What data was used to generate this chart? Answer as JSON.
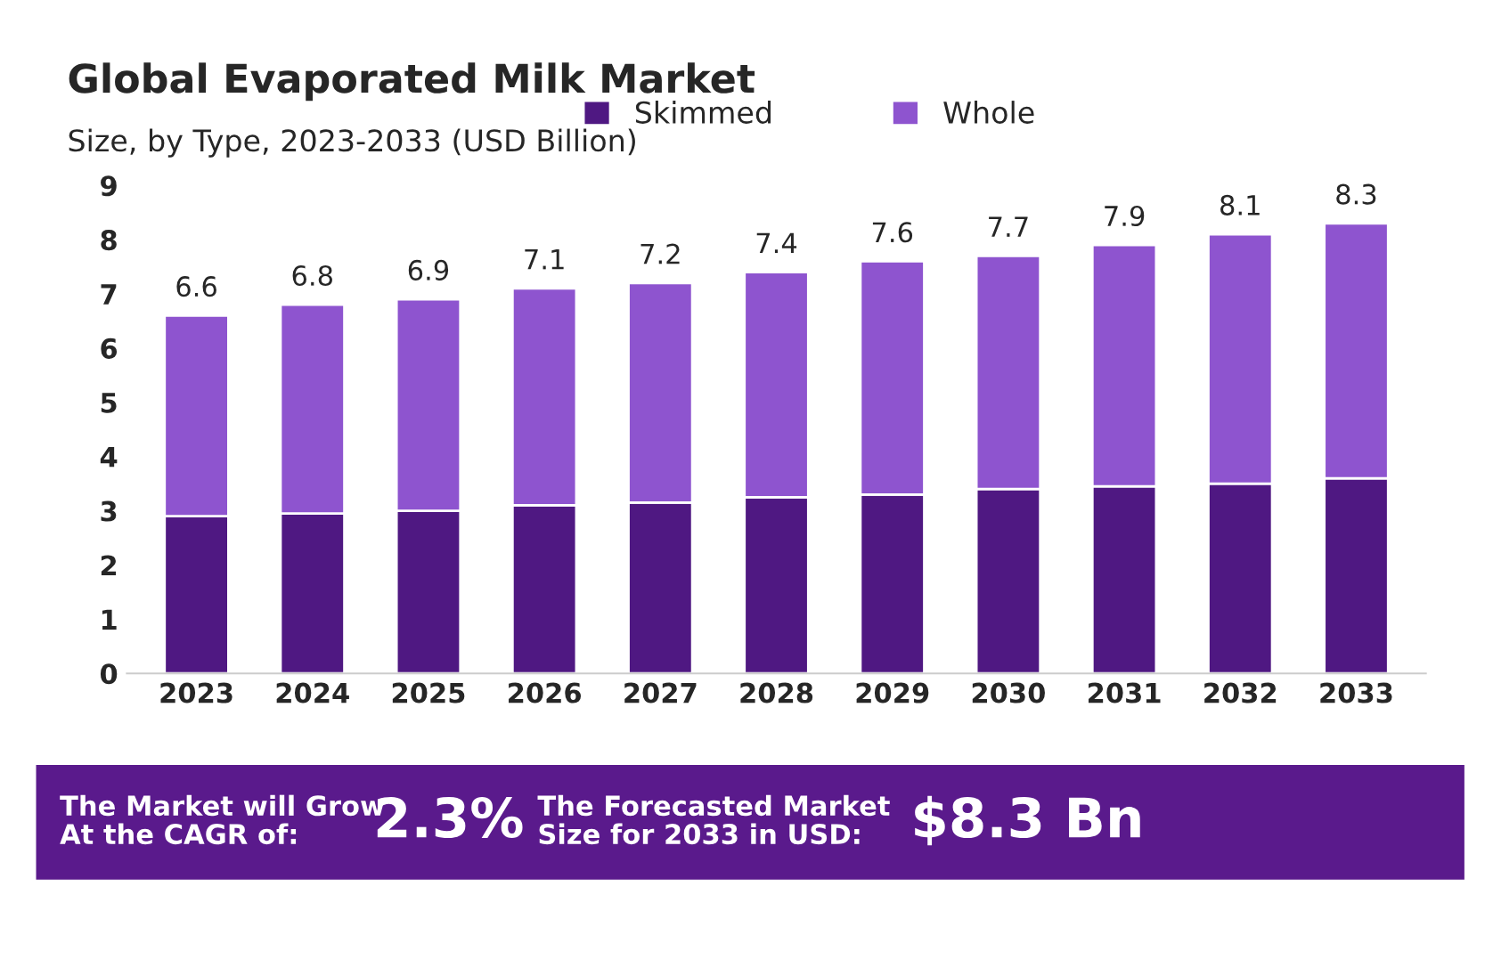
{
  "chart_data": {
    "type": "bar",
    "title": "Global Evaporated Milk Market",
    "subtitle": "Size, by Type, 2023-2033 (USD Billion)",
    "categories": [
      "2023",
      "2024",
      "2025",
      "2026",
      "2027",
      "2028",
      "2029",
      "2030",
      "2031",
      "2032",
      "2033"
    ],
    "stacked": true,
    "series": [
      {
        "name": "Skimmed",
        "color": "#4f1882",
        "values": [
          2.9,
          2.95,
          3.0,
          3.1,
          3.15,
          3.25,
          3.3,
          3.4,
          3.45,
          3.5,
          3.6
        ]
      },
      {
        "name": "Whole",
        "color": "#8e54cf",
        "values": [
          3.7,
          3.85,
          3.9,
          4.0,
          4.05,
          4.15,
          4.3,
          4.3,
          4.45,
          4.6,
          4.7
        ]
      }
    ],
    "totals": [
      "6.6",
      "6.8",
      "6.9",
      "7.1",
      "7.2",
      "7.4",
      "7.6",
      "7.7",
      "7.9",
      "8.1",
      "8.3"
    ],
    "ylim": [
      0,
      9
    ],
    "yticks": [
      0,
      1,
      2,
      3,
      4,
      5,
      6,
      7,
      8,
      9
    ],
    "grid": false,
    "legend": "top right",
    "annotations": [
      "The Market will Grow\nAt the CAGR of:",
      "2.3%",
      "The Forecasted Market\nSize for 2033 in USD:",
      "$8.3 Bn"
    ]
  }
}
